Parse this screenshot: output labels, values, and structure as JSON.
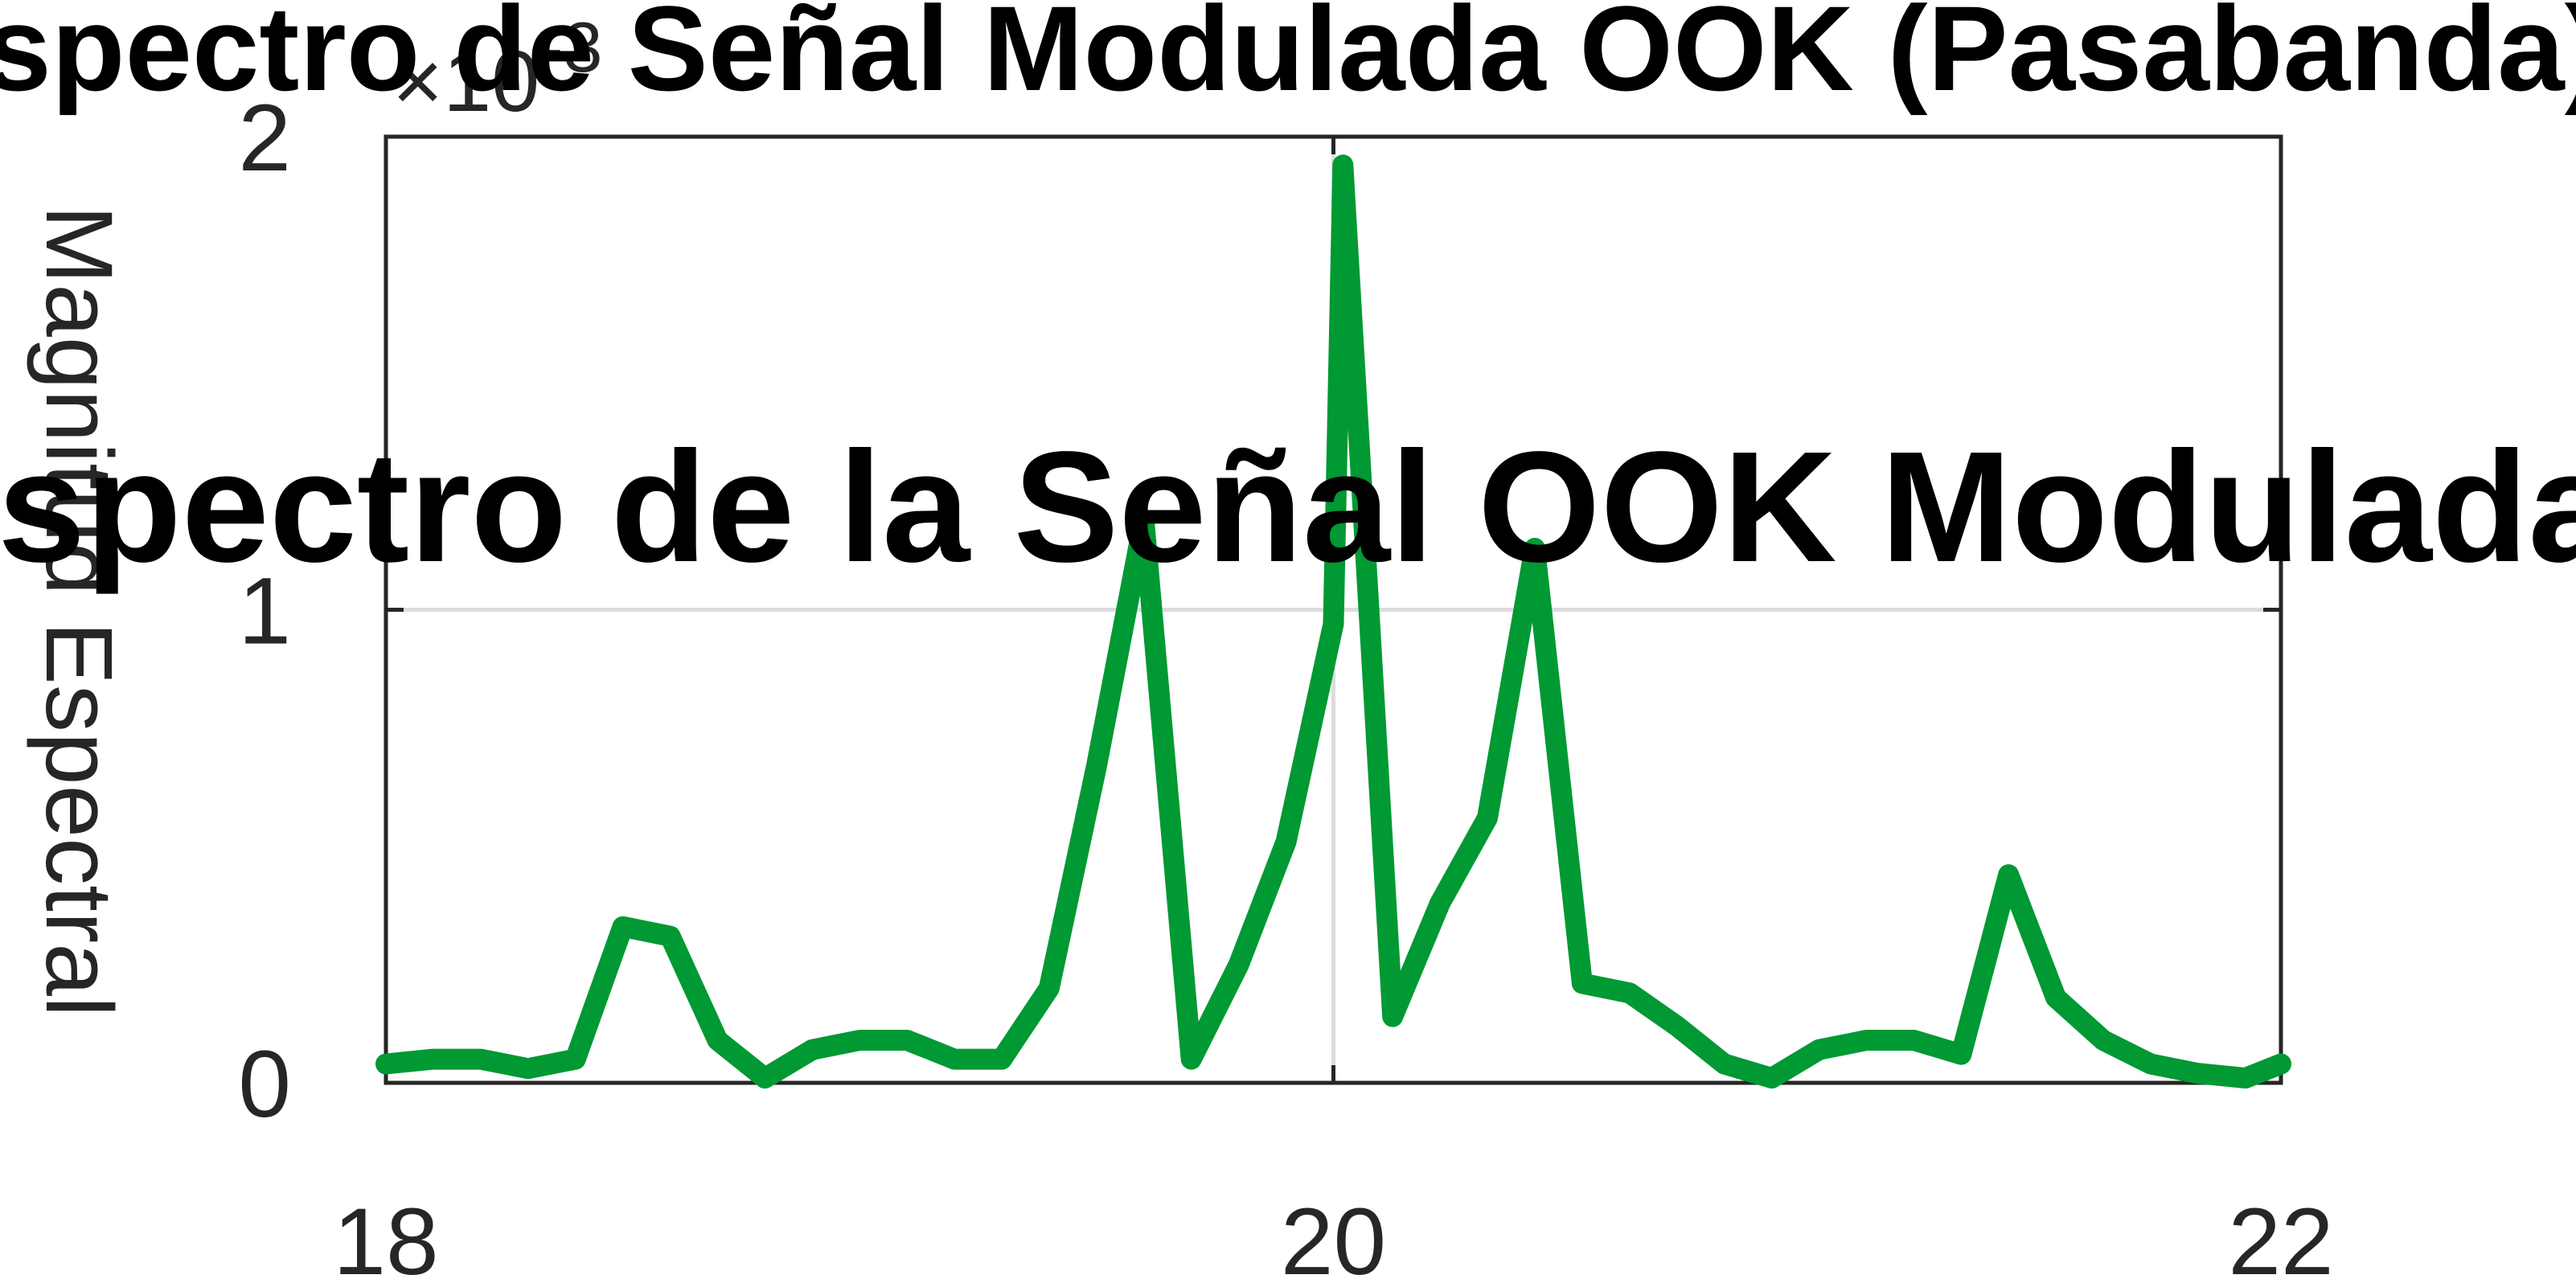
{
  "chart_data": {
    "type": "line",
    "title": "Espectro de Señal Modulada OOK (Pasabanda)",
    "overlay_title": "Espectro de la Señal OOK Modulada",
    "xlabel": "",
    "ylabel": "Magnitud Espectral",
    "y_exponent_label": "×10",
    "y_exponent_power": "-3",
    "xlim": [
      18,
      22
    ],
    "ylim": [
      0,
      0.002
    ],
    "x_ticks": [
      18,
      20,
      22
    ],
    "x_tick_labels": [
      "18",
      "20",
      "22"
    ],
    "y_ticks": [
      0,
      0.001,
      0.002
    ],
    "y_tick_labels": [
      "0",
      "1",
      "2"
    ],
    "grid": true,
    "line_color": "#009933",
    "x": [
      18.0,
      18.1,
      18.2,
      18.3,
      18.4,
      18.5,
      18.6,
      18.7,
      18.8,
      18.9,
      19.0,
      19.1,
      19.2,
      19.3,
      19.4,
      19.5,
      19.6,
      19.7,
      19.8,
      19.9,
      20.0,
      20.02,
      20.125,
      20.225,
      20.325,
      20.425,
      20.525,
      20.625,
      20.725,
      20.825,
      20.925,
      21.025,
      21.125,
      21.225,
      21.325,
      21.425,
      21.525,
      21.625,
      21.725,
      21.825,
      21.925,
      22.0
    ],
    "values": [
      4e-05,
      5e-05,
      5e-05,
      3e-05,
      5e-05,
      0.00033,
      0.00031,
      9e-05,
      1e-05,
      7e-05,
      9e-05,
      9e-05,
      5e-05,
      5e-05,
      0.0002,
      0.00067,
      0.00119,
      5e-05,
      0.00025,
      0.00051,
      0.00097,
      0.00194,
      0.00014,
      0.00038,
      0.00056,
      0.00113,
      0.00021,
      0.00019,
      0.00012,
      4e-05,
      1e-05,
      7e-05,
      9e-05,
      9e-05,
      6e-05,
      0.00044,
      0.00018,
      9e-05,
      4e-05,
      2e-05,
      1e-05,
      4e-05
    ]
  }
}
